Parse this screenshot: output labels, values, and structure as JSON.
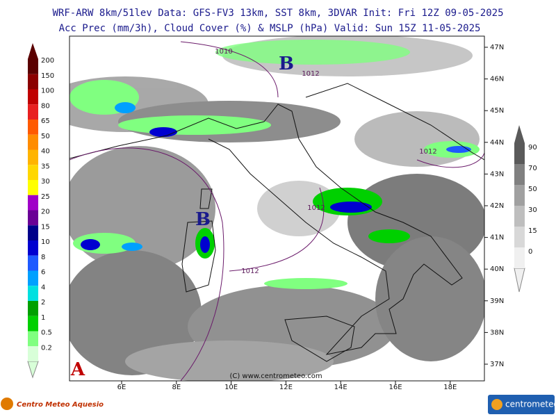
{
  "header": {
    "line1": "WRF-ARW 8km/51lev  Data: GFS-FV3 13km, SST 8km, 3DVAR  Init: Fri 12Z 09-05-2025",
    "line2": "Acc Prec (mm/3h), Cloud Cover (%) & MSLP (hPa)  Valid: Sun 15Z 11-05-2025"
  },
  "map": {
    "lat_labels": [
      "47N",
      "46N",
      "45N",
      "44N",
      "43N",
      "42N",
      "41N",
      "40N",
      "39N",
      "38N",
      "37N"
    ],
    "lon_labels": [
      "6E",
      "8E",
      "10E",
      "12E",
      "14E",
      "16E",
      "18E"
    ],
    "isobar_labels": [
      "1010",
      "1012",
      "1012",
      "1012",
      "1012"
    ],
    "pressure_centers": [
      "B",
      "B",
      "A"
    ],
    "copyright": "(C) www.centrometeo.com"
  },
  "precip_legend": [
    {
      "label": "200",
      "color": "#5a0000"
    },
    {
      "label": "150",
      "color": "#8b0000"
    },
    {
      "label": "100",
      "color": "#c00000"
    },
    {
      "label": "80",
      "color": "#e82020"
    },
    {
      "label": "65",
      "color": "#ff5a00"
    },
    {
      "label": "50",
      "color": "#ff8c00"
    },
    {
      "label": "40",
      "color": "#ffb400"
    },
    {
      "label": "35",
      "color": "#ffd700"
    },
    {
      "label": "30",
      "color": "#ffff00"
    },
    {
      "label": "25",
      "color": "#a000c8"
    },
    {
      "label": "20",
      "color": "#6a0096"
    },
    {
      "label": "15",
      "color": "#00008b"
    },
    {
      "label": "10",
      "color": "#0000d0"
    },
    {
      "label": "8",
      "color": "#1e5aff"
    },
    {
      "label": "6",
      "color": "#00a0ff"
    },
    {
      "label": "4",
      "color": "#00e0e0"
    },
    {
      "label": "2",
      "color": "#00a000"
    },
    {
      "label": "1",
      "color": "#00d000"
    },
    {
      "label": "0.5",
      "color": "#80ff80"
    },
    {
      "label": "0.2",
      "color": "#d8ffd8"
    }
  ],
  "cloud_legend": [
    {
      "label": "90",
      "color": "#5a5a5a"
    },
    {
      "label": "70",
      "color": "#808080"
    },
    {
      "label": "50",
      "color": "#a0a0a0"
    },
    {
      "label": "30",
      "color": "#bebebe"
    },
    {
      "label": "15",
      "color": "#d8d8d8"
    },
    {
      "label": "0",
      "color": "#f0f0f0"
    }
  ],
  "logos": {
    "left": "Centro Meteo Aquesio",
    "right": "centrometeo"
  }
}
